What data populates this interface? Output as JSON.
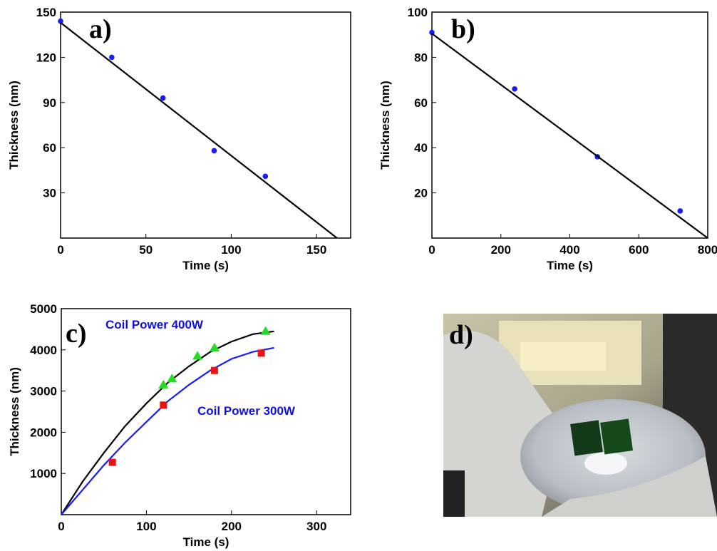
{
  "chart_data": [
    {
      "type": "scatter",
      "panel_label": "a)",
      "xlabel": "Time (s)",
      "ylabel": "Thickness (nm)",
      "xlim": [
        0,
        170
      ],
      "xticks": [
        0,
        50,
        100,
        150
      ],
      "ylim": [
        0,
        150
      ],
      "yticks": [
        30,
        60,
        90,
        120,
        150
      ],
      "series": [
        {
          "kind": "points",
          "marker": "circle",
          "color": "#1a1aff",
          "x": [
            0,
            30,
            60,
            90,
            120
          ],
          "values": [
            144,
            120,
            93,
            58,
            41
          ]
        },
        {
          "kind": "line",
          "color": "#000000",
          "x": [
            0,
            162
          ],
          "values": [
            143,
            0
          ]
        }
      ]
    },
    {
      "type": "scatter",
      "panel_label": "b)",
      "xlabel": "Time (s)",
      "ylabel": "Thickness (nm)",
      "xlim": [
        0,
        800
      ],
      "xticks": [
        0,
        200,
        400,
        600,
        800
      ],
      "ylim": [
        0,
        100
      ],
      "yticks": [
        20,
        40,
        60,
        80,
        100
      ],
      "series": [
        {
          "kind": "points",
          "marker": "circle",
          "color": "#1a1aff",
          "x": [
            0,
            240,
            480,
            720
          ],
          "values": [
            91,
            66,
            36,
            12
          ]
        },
        {
          "kind": "line",
          "color": "#000000",
          "x": [
            0,
            800
          ],
          "values": [
            90.5,
            0
          ]
        }
      ]
    },
    {
      "type": "scatter",
      "panel_label": "c)",
      "xlabel": "Time (s)",
      "ylabel": "Thickness (nm)",
      "xlim": [
        0,
        340
      ],
      "xticks": [
        0,
        100,
        200,
        300
      ],
      "ylim": [
        0,
        5000
      ],
      "yticks": [
        1000,
        2000,
        3000,
        4000,
        5000
      ],
      "annotations": [
        "Coil Power 400W",
        "Coil Power 300W"
      ],
      "series": [
        {
          "kind": "line",
          "color": "#000000",
          "x": [
            0,
            25,
            50,
            75,
            100,
            125,
            150,
            175,
            200,
            225,
            250
          ],
          "values": [
            0,
            800,
            1500,
            2150,
            2700,
            3200,
            3600,
            3950,
            4200,
            4380,
            4450
          ]
        },
        {
          "kind": "line",
          "color": "#1a1aff",
          "x": [
            0,
            25,
            50,
            75,
            100,
            125,
            150,
            175,
            200,
            225,
            250
          ],
          "values": [
            0,
            600,
            1200,
            1750,
            2250,
            2750,
            3150,
            3500,
            3780,
            3950,
            4050
          ]
        },
        {
          "kind": "points",
          "marker": "triangle",
          "color": "#22dd22",
          "x": [
            120,
            130,
            160,
            180,
            240
          ],
          "values": [
            3150,
            3300,
            3850,
            4050,
            4450
          ]
        },
        {
          "kind": "points",
          "marker": "square",
          "color": "#ee1111",
          "x": [
            60,
            120,
            180,
            235
          ],
          "values": [
            1270,
            2660,
            3500,
            3920
          ]
        }
      ]
    }
  ],
  "photo_label": "d)"
}
